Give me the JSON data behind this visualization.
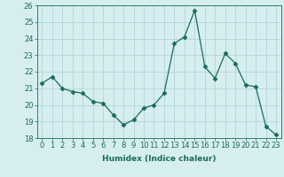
{
  "x": [
    0,
    1,
    2,
    3,
    4,
    5,
    6,
    7,
    8,
    9,
    10,
    11,
    12,
    13,
    14,
    15,
    16,
    17,
    18,
    19,
    20,
    21,
    22,
    23
  ],
  "y": [
    21.3,
    21.7,
    21.0,
    20.8,
    20.7,
    20.2,
    20.1,
    19.4,
    18.8,
    19.1,
    19.8,
    20.0,
    20.7,
    23.7,
    24.1,
    25.7,
    22.3,
    21.6,
    23.1,
    22.5,
    21.2,
    21.1,
    18.7,
    18.2
  ],
  "line_color": "#1a6b5a",
  "marker": "D",
  "marker_size": 2.5,
  "bg_color": "#d6eef0",
  "grid_color": "#b8d8dc",
  "xlabel": "Humidex (Indice chaleur)",
  "ylim": [
    18,
    26
  ],
  "xlim": [
    -0.5,
    23.5
  ],
  "yticks": [
    18,
    19,
    20,
    21,
    22,
    23,
    24,
    25,
    26
  ],
  "xticks": [
    0,
    1,
    2,
    3,
    4,
    5,
    6,
    7,
    8,
    9,
    10,
    11,
    12,
    13,
    14,
    15,
    16,
    17,
    18,
    19,
    20,
    21,
    22,
    23
  ],
  "label_fontsize": 6.5,
  "tick_fontsize": 6.0
}
